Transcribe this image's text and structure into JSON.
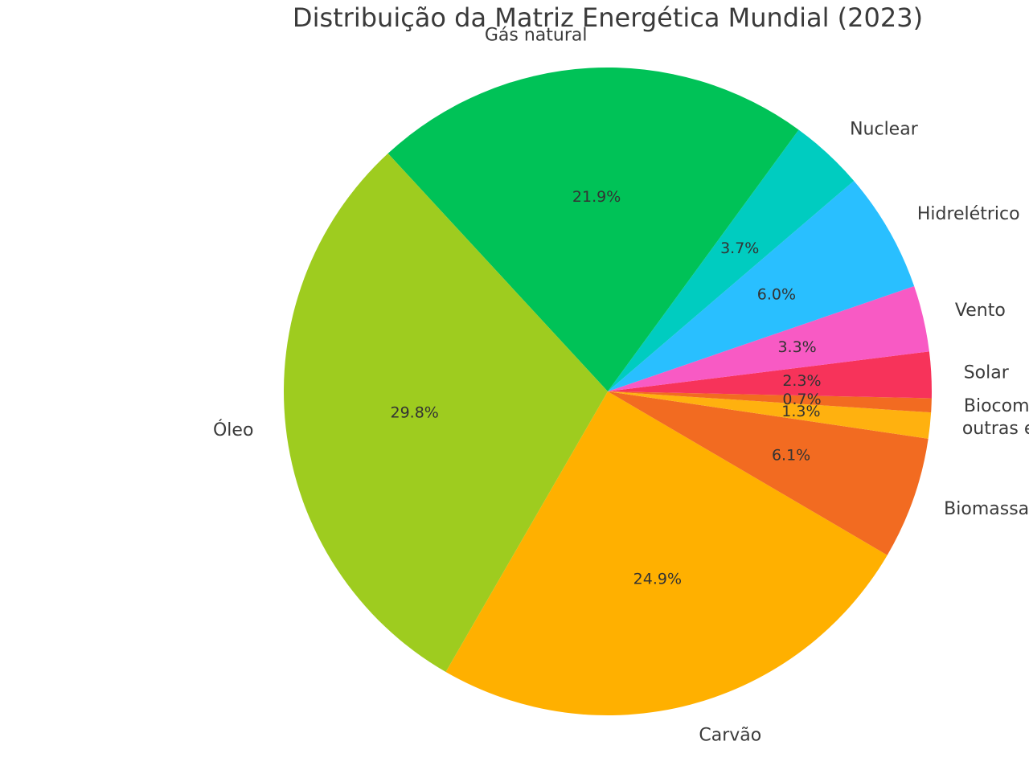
{
  "chart_data": {
    "type": "pie",
    "title": "Distribuição da Matriz Energética Mundial (2023)",
    "start_angle_deg": 240,
    "direction": "counterclockwise",
    "slices": [
      {
        "label": "Carvão",
        "value": 24.9,
        "pct_label": "24.9%",
        "color": "#FFB000"
      },
      {
        "label": "Biomassa tradicional",
        "value": 6.1,
        "pct_label": "6.1%",
        "color": "#F26B21"
      },
      {
        "label": "outras energias renováveis",
        "value": 1.3,
        "pct_label": "1.3%",
        "color": "#FFB10F"
      },
      {
        "label": "Biocombustíveis modernos",
        "value": 0.7,
        "pct_label": "0.7%",
        "color": "#F26B21"
      },
      {
        "label": "Solar",
        "value": 2.3,
        "pct_label": "2.3%",
        "color": "#F7335A"
      },
      {
        "label": "Vento",
        "value": 3.3,
        "pct_label": "3.3%",
        "color": "#F85AC4"
      },
      {
        "label": "Hidrelétrico",
        "value": 6.0,
        "pct_label": "6.0%",
        "color": "#29BFFF"
      },
      {
        "label": "Nuclear",
        "value": 3.7,
        "pct_label": "3.7%",
        "color": "#00CCC0"
      },
      {
        "label": "Gás natural",
        "value": 21.9,
        "pct_label": "21.9%",
        "color": "#00C257"
      },
      {
        "label": "Óleo",
        "value": 29.8,
        "pct_label": "29.8%",
        "color": "#9ECC1F"
      }
    ]
  }
}
